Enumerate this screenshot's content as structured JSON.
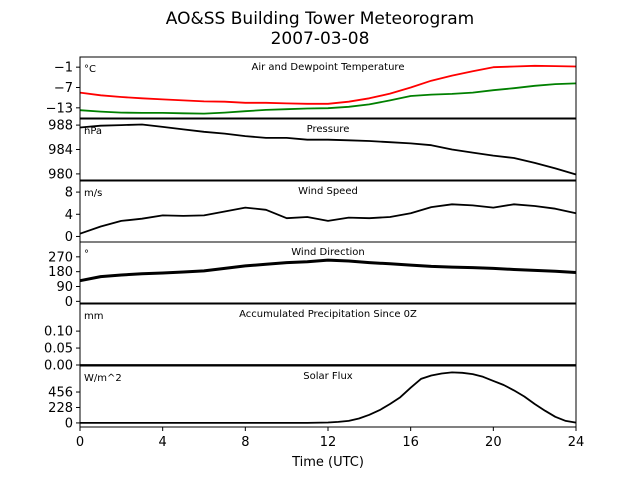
{
  "title_line1": "AO&SS Building Tower Meteorogram",
  "title_line2": "2007-03-08",
  "chart_data": {
    "type": "line",
    "xlabel": "Time (UTC)",
    "xlim": [
      0,
      24
    ],
    "xticks": [
      0,
      4,
      8,
      12,
      16,
      20,
      24
    ],
    "panels": [
      {
        "key": "temperature",
        "title": "Air and Dewpoint Temperature",
        "unit": "°C",
        "ylim": [
          -16,
          2
        ],
        "yticks": [
          -1,
          -7,
          -13
        ],
        "series": [
          {
            "color": "#ff0000",
            "x": [
              0,
              1,
              2,
              3,
              4,
              5,
              6,
              7,
              8,
              9,
              10,
              11,
              12,
              13,
              14,
              15,
              16,
              17,
              18,
              19,
              20,
              21,
              22,
              23,
              24
            ],
            "y": [
              -8.5,
              -9.3,
              -9.8,
              -10.2,
              -10.5,
              -10.8,
              -11.1,
              -11.2,
              -11.5,
              -11.5,
              -11.7,
              -11.8,
              -11.8,
              -11.2,
              -10.2,
              -8.8,
              -7.0,
              -5.0,
              -3.5,
              -2.2,
              -1.0,
              -0.8,
              -0.6,
              -0.7,
              -0.8
            ]
          },
          {
            "color": "#008000",
            "x": [
              0,
              1,
              2,
              3,
              4,
              5,
              6,
              7,
              8,
              9,
              10,
              11,
              12,
              13,
              14,
              15,
              16,
              17,
              18,
              19,
              20,
              21,
              22,
              23,
              24
            ],
            "y": [
              -13.7,
              -14.1,
              -14.4,
              -14.5,
              -14.5,
              -14.6,
              -14.7,
              -14.4,
              -14.0,
              -13.6,
              -13.4,
              -13.2,
              -13.1,
              -12.7,
              -12.0,
              -10.8,
              -9.5,
              -9.1,
              -8.9,
              -8.5,
              -7.8,
              -7.2,
              -6.5,
              -6.0,
              -5.8
            ]
          }
        ]
      },
      {
        "key": "pressure",
        "title": "Pressure",
        "unit": "hPa",
        "ylim": [
          979,
          989
        ],
        "yticks": [
          988,
          984,
          980
        ],
        "series": [
          {
            "color": "#000000",
            "x": [
              0,
              1,
              2,
              3,
              4,
              5,
              6,
              7,
              8,
              9,
              10,
              11,
              12,
              13,
              14,
              15,
              16,
              17,
              18,
              19,
              20,
              21,
              22,
              23,
              24
            ],
            "y": [
              987.6,
              987.9,
              988.0,
              988.1,
              987.7,
              987.3,
              986.9,
              986.6,
              986.2,
              985.9,
              985.9,
              985.6,
              985.6,
              985.5,
              985.4,
              985.2,
              985.0,
              984.7,
              984.0,
              983.5,
              983.0,
              982.6,
              981.8,
              980.9,
              979.9
            ]
          }
        ]
      },
      {
        "key": "wind_speed",
        "title": "Wind Speed",
        "unit": "m/s",
        "ylim": [
          -1,
          10
        ],
        "yticks": [
          8,
          4,
          0
        ],
        "series": [
          {
            "color": "#000000",
            "x": [
              0,
              1,
              2,
              3,
              4,
              5,
              6,
              7,
              8,
              9,
              10,
              11,
              12,
              13,
              14,
              15,
              16,
              17,
              18,
              19,
              20,
              21,
              22,
              23,
              24
            ],
            "y": [
              0.5,
              1.8,
              2.8,
              3.2,
              3.8,
              3.7,
              3.8,
              4.5,
              5.2,
              4.8,
              3.3,
              3.5,
              2.8,
              3.4,
              3.3,
              3.5,
              4.2,
              5.3,
              5.8,
              5.6,
              5.2,
              5.8,
              5.5,
              5.0,
              4.2
            ]
          }
        ]
      },
      {
        "key": "wind_direction",
        "title": "Wind Direction",
        "unit": "°",
        "ylim": [
          -10,
          360
        ],
        "yticks": [
          270,
          180,
          90,
          0
        ],
        "series": [
          {
            "color": "#000000",
            "x": [
              0,
              1,
              2,
              3,
              4,
              5,
              6,
              7,
              8,
              9,
              10,
              11,
              12,
              13,
              14,
              15,
              16,
              17,
              18,
              19,
              20,
              21,
              22,
              23,
              24
            ],
            "y": [
              125,
              150,
              160,
              168,
              172,
              178,
              185,
              200,
              215,
              225,
              235,
              240,
              250,
              245,
              235,
              228,
              220,
              212,
              208,
              205,
              200,
              193,
              188,
              183,
              175
            ]
          }
        ]
      },
      {
        "key": "precipitation",
        "title": "Accumulated Precipitation Since 0Z",
        "unit": "mm",
        "ylim": [
          0,
          0.18
        ],
        "yticks": [
          0.1,
          0.05,
          0.0
        ],
        "series": [
          {
            "color": "#000000",
            "x": [
              0,
              24
            ],
            "y": [
              0,
              0
            ]
          }
        ]
      },
      {
        "key": "solar",
        "title": "Solar Flux",
        "unit": "W/m^2",
        "ylim": [
          -60,
          840
        ],
        "yticks": [
          456,
          228,
          0
        ],
        "series": [
          {
            "color": "#000000",
            "x": [
              0,
              10,
              11,
              12,
              12.5,
              13,
              13.5,
              14,
              14.5,
              15,
              15.5,
              16,
              16.5,
              17,
              17.5,
              18,
              18.5,
              19,
              19.5,
              20,
              20.5,
              21,
              21.5,
              22,
              22.5,
              23,
              23.5,
              24
            ],
            "y": [
              0,
              0,
              1,
              6,
              15,
              30,
              65,
              120,
              190,
              280,
              380,
              520,
              650,
              700,
              730,
              745,
              740,
              720,
              680,
              620,
              560,
              480,
              390,
              280,
              180,
              90,
              30,
              5
            ]
          }
        ]
      }
    ]
  }
}
